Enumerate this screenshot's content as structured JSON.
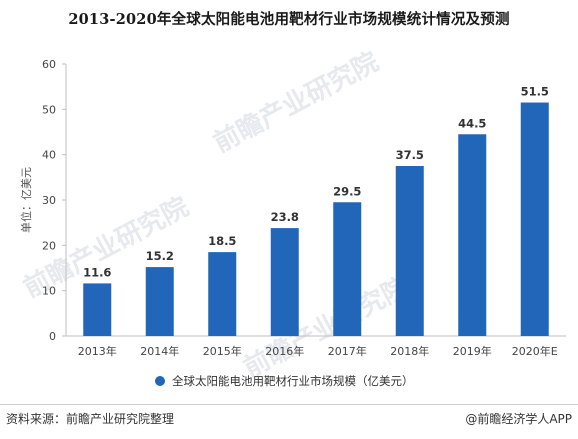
{
  "title": "2013-2020年全球太阳能电池用靶材行业市场规模统计情况及预测",
  "footer": {
    "source": "资料来源：前瞻产业研究院整理",
    "brand": "@前瞻经济学人APP"
  },
  "watermark": {
    "text": "前瞻产业研究院"
  },
  "chart_data": {
    "type": "bar",
    "categories": [
      "2013年",
      "2014年",
      "2015年",
      "2016年",
      "2017年",
      "2018年",
      "2019年",
      "2020年E"
    ],
    "series": [
      {
        "name": "全球太阳能电池用靶材行业市场规模（亿美元）",
        "values": [
          11.6,
          15.2,
          18.5,
          23.8,
          29.5,
          37.5,
          44.5,
          51.5
        ],
        "color": "#2166b8"
      }
    ],
    "data_labels": [
      "11.6",
      "15.2",
      "18.5",
      "23.8",
      "29.5",
      "37.5",
      "44.5",
      "51.5"
    ],
    "ylabel": "单位：亿美元",
    "ylim": [
      0,
      60
    ],
    "yticks": [
      0,
      10,
      20,
      30,
      40,
      50,
      60
    ],
    "ytick_labels": [
      "0",
      "10",
      "20",
      "30",
      "40",
      "50",
      "60"
    ],
    "grid": false,
    "legend_position": "bottom-center"
  }
}
